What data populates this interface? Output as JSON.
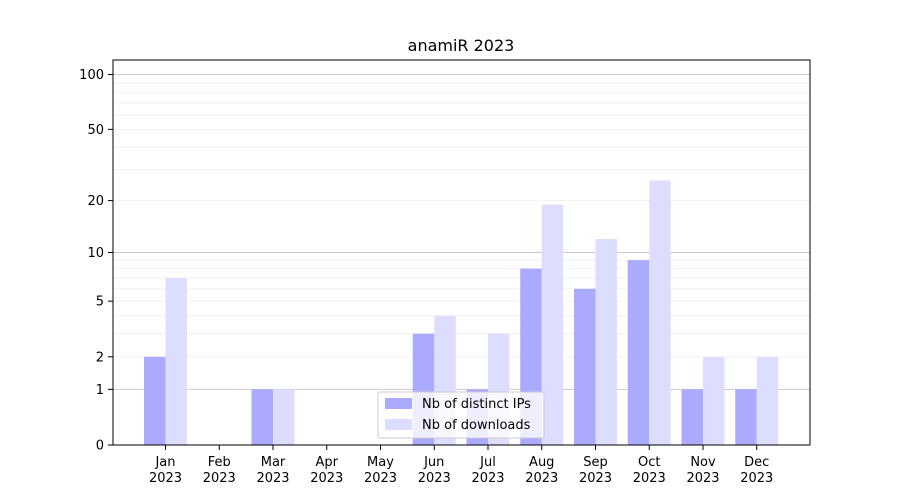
{
  "chart_data": {
    "type": "bar",
    "title": "anamiR 2023",
    "xlabel": "",
    "ylabel": "",
    "categories": [
      "Jan 2023",
      "Feb 2023",
      "Mar 2023",
      "Apr 2023",
      "May 2023",
      "Jun 2023",
      "Jul 2023",
      "Aug 2023",
      "Sep 2023",
      "Oct 2023",
      "Nov 2023",
      "Dec 2023"
    ],
    "category_lines": [
      [
        "Jan",
        "2023"
      ],
      [
        "Feb",
        "2023"
      ],
      [
        "Mar",
        "2023"
      ],
      [
        "Apr",
        "2023"
      ],
      [
        "May",
        "2023"
      ],
      [
        "Jun",
        "2023"
      ],
      [
        "Jul",
        "2023"
      ],
      [
        "Aug",
        "2023"
      ],
      [
        "Sep",
        "2023"
      ],
      [
        "Oct",
        "2023"
      ],
      [
        "Nov",
        "2023"
      ],
      [
        "Dec",
        "2023"
      ]
    ],
    "series": [
      {
        "name": "Nb of distinct IPs",
        "color": "#aaaaff",
        "values": [
          2,
          0,
          1,
          0,
          0,
          3,
          1,
          8,
          6,
          9,
          1,
          1
        ]
      },
      {
        "name": "Nb of downloads",
        "color": "#ddddff",
        "values": [
          7,
          0,
          1,
          0,
          0,
          4,
          3,
          19,
          12,
          26,
          2,
          2
        ]
      }
    ],
    "y_scale": "log1p",
    "y_ticks": [
      0,
      1,
      2,
      5,
      10,
      20,
      50,
      100
    ],
    "y_tick_labels": [
      "0",
      "1",
      "2",
      "5",
      "10",
      "20",
      "50",
      "100"
    ],
    "ylim": [
      0,
      120
    ],
    "major_gridlines": [
      1,
      10,
      100
    ],
    "minor_gridlines": [
      2,
      3,
      4,
      5,
      6,
      7,
      8,
      9,
      20,
      30,
      40,
      50,
      60,
      70,
      80,
      90
    ],
    "grid": true,
    "legend_position": "bottom-center"
  }
}
